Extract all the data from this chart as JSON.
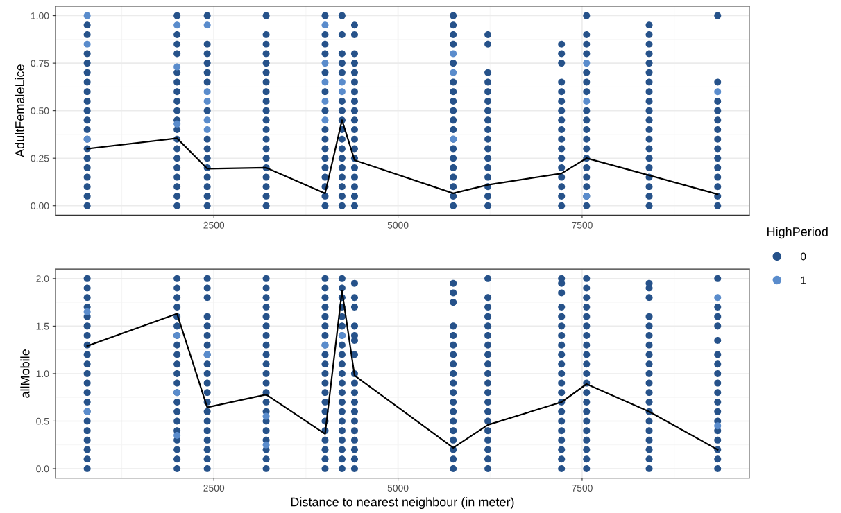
{
  "chart_data": [
    {
      "type": "scatter",
      "ylabel": "AdultFemaleLice",
      "xlim": [
        350,
        9770
      ],
      "xticks": [
        2500,
        5000,
        7500
      ],
      "ylim": [
        -0.05,
        1.05
      ],
      "yticks": [
        {
          "value": 0,
          "label": "0.00"
        },
        {
          "value": 0.25,
          "label": "0.25"
        },
        {
          "value": 0.5,
          "label": "0.50"
        },
        {
          "value": 0.75,
          "label": "0.75"
        },
        {
          "value": 1,
          "label": "1.00"
        }
      ],
      "grid": true,
      "marker": "circle",
      "legend": "right",
      "legend_title": "HighPeriod",
      "series": [
        {
          "name": "0",
          "color": "#26528a",
          "x": [
            780,
            780,
            780,
            780,
            780,
            780,
            780,
            780,
            780,
            780,
            780,
            780,
            780,
            780,
            780,
            780,
            780,
            780,
            780,
            2000,
            2000,
            2000,
            2000,
            2000,
            2000,
            2000,
            2000,
            2000,
            2000,
            2000,
            2000,
            2000,
            2000,
            2000,
            2000,
            2000,
            2000,
            2000,
            2410,
            2410,
            2410,
            2410,
            2410,
            2410,
            2410,
            2410,
            2410,
            2410,
            2410,
            2410,
            2410,
            2410,
            2410,
            3210,
            3210,
            3210,
            3210,
            3210,
            3210,
            3210,
            3210,
            3210,
            3210,
            3210,
            3210,
            3210,
            3210,
            3210,
            3210,
            3210,
            3210,
            3210,
            3210,
            4010,
            4010,
            4010,
            4010,
            4010,
            4010,
            4010,
            4010,
            4010,
            4010,
            4010,
            4010,
            4010,
            4010,
            4010,
            4010,
            4240,
            4240,
            4240,
            4240,
            4240,
            4240,
            4240,
            4240,
            4240,
            4240,
            4240,
            4240,
            4240,
            4240,
            4240,
            4240,
            4240,
            4410,
            4410,
            4410,
            4410,
            4410,
            4410,
            4410,
            4410,
            4410,
            4410,
            4410,
            4410,
            4410,
            4410,
            4410,
            4410,
            4410,
            4410,
            4410,
            5750,
            5750,
            5750,
            5750,
            5750,
            5750,
            5750,
            5750,
            5750,
            5750,
            5750,
            5750,
            5750,
            5750,
            5750,
            5750,
            5750,
            5750,
            5750,
            6220,
            6220,
            6220,
            6220,
            6220,
            6220,
            6220,
            6220,
            6220,
            6220,
            6220,
            6220,
            6220,
            6220,
            6220,
            6220,
            6220,
            7220,
            7220,
            7220,
            7220,
            7220,
            7220,
            7220,
            7220,
            7220,
            7220,
            7220,
            7220,
            7220,
            7220,
            7220,
            7220,
            7220,
            7560,
            7560,
            7560,
            7560,
            7560,
            7560,
            7560,
            7560,
            7560,
            7560,
            7560,
            7560,
            7560,
            7560,
            7560,
            7560,
            7560,
            7560,
            8410,
            8410,
            8410,
            8410,
            8410,
            8410,
            8410,
            8410,
            8410,
            8410,
            8410,
            8410,
            8410,
            8410,
            8410,
            8410,
            8410,
            8410,
            8410,
            8410,
            9340,
            9340,
            9340,
            9340,
            9340,
            9340,
            9340,
            9340,
            9340,
            9340,
            9340,
            9340,
            9340,
            9340
          ],
          "values": [
            0,
            0.05,
            0.1,
            0.15,
            0.2,
            0.25,
            0.3,
            0.35,
            0.4,
            0.45,
            0.5,
            0.55,
            0.6,
            0.65,
            0.7,
            0.75,
            0.8,
            0.9,
            0.95,
            0,
            0.05,
            0.1,
            0.15,
            0.2,
            0.25,
            0.3,
            0.35,
            0.4,
            0.45,
            0.5,
            0.55,
            0.6,
            0.65,
            0.7,
            0.8,
            0.85,
            0.9,
            1,
            0,
            0.05,
            0.1,
            0.15,
            0.2,
            0.25,
            0.3,
            0.35,
            0.5,
            0.65,
            0.7,
            0.75,
            0.8,
            0.85,
            1,
            0,
            0.05,
            0.1,
            0.15,
            0.2,
            0.25,
            0.3,
            0.35,
            0.4,
            0.45,
            0.5,
            0.55,
            0.6,
            0.65,
            0.7,
            0.75,
            0.8,
            0.85,
            0.9,
            1,
            0,
            0.05,
            0.1,
            0.15,
            0.2,
            0.25,
            0.3,
            0.35,
            0.4,
            0.5,
            0.6,
            0.7,
            0.8,
            0.85,
            0.9,
            1,
            0,
            0.05,
            0.1,
            0.15,
            0.2,
            0.25,
            0.3,
            0.35,
            0.4,
            0.45,
            0.5,
            0.55,
            0.7,
            0.75,
            0.8,
            0.9,
            1,
            0,
            0.05,
            0.1,
            0.15,
            0.2,
            0.25,
            0.3,
            0.35,
            0.4,
            0.45,
            0.5,
            0.55,
            0.6,
            0.65,
            0.7,
            0.75,
            0.8,
            0.9,
            0.95,
            0,
            0.05,
            0.1,
            0.15,
            0.2,
            0.25,
            0.3,
            0.35,
            0.4,
            0.45,
            0.5,
            0.55,
            0.6,
            0.65,
            0.75,
            0.85,
            0.9,
            0.95,
            1,
            0,
            0.05,
            0.1,
            0.15,
            0.2,
            0.25,
            0.3,
            0.35,
            0.4,
            0.45,
            0.5,
            0.55,
            0.6,
            0.65,
            0.7,
            0.85,
            0.9,
            0,
            0.05,
            0.1,
            0.15,
            0.2,
            0.25,
            0.3,
            0.35,
            0.4,
            0.45,
            0.5,
            0.55,
            0.6,
            0.65,
            0.75,
            0.8,
            0.85,
            0,
            0.05,
            0.1,
            0.15,
            0.2,
            0.25,
            0.3,
            0.35,
            0.4,
            0.45,
            0.5,
            0.6,
            0.65,
            0.7,
            0.8,
            0.85,
            0.9,
            1,
            0,
            0.05,
            0.1,
            0.15,
            0.2,
            0.25,
            0.3,
            0.35,
            0.4,
            0.45,
            0.5,
            0.55,
            0.6,
            0.65,
            0.7,
            0.75,
            0.8,
            0.85,
            0.9,
            0.95,
            0,
            0.05,
            0.1,
            0.15,
            0.2,
            0.25,
            0.3,
            0.35,
            0.4,
            0.45,
            0.5,
            0.55,
            0.65,
            1
          ]
        },
        {
          "name": "1",
          "color": "#5a8ccc",
          "x": [
            780,
            780,
            780,
            2000,
            2000,
            2000,
            2410,
            2410,
            2410,
            2410,
            2410,
            4010,
            4010,
            4010,
            4010,
            4010,
            4240,
            4240,
            5750,
            5750,
            5750,
            7560,
            7560,
            7560,
            9340
          ],
          "values": [
            1,
            0.85,
            0.35,
            0.95,
            0.73,
            0.43,
            0.95,
            0.6,
            0.55,
            0.45,
            0.4,
            0.95,
            0.75,
            0.65,
            0.55,
            0.45,
            0.65,
            0.6,
            0.8,
            0.7,
            0.35,
            0.75,
            0.55,
            0.05,
            0.6
          ]
        },
        {
          "type": "line",
          "color": "#000000",
          "marker": "none",
          "x": [
            780,
            2000,
            2410,
            3210,
            4010,
            4240,
            4410,
            5750,
            6220,
            7220,
            7560,
            8410,
            9340
          ],
          "values": [
            0.3,
            0.355,
            0.195,
            0.2,
            0.065,
            0.45,
            0.24,
            0.065,
            0.11,
            0.17,
            0.25,
            0.16,
            0.06
          ]
        }
      ]
    },
    {
      "type": "scatter",
      "xlabel": "Distance to nearest neighbour (in meter)",
      "ylabel": "allMobile",
      "xlim": [
        350,
        9770
      ],
      "xticks": [
        2500,
        5000,
        7500
      ],
      "ylim": [
        -0.1,
        2.1
      ],
      "yticks": [
        {
          "value": 0,
          "label": "0.0"
        },
        {
          "value": 0.5,
          "label": "0.5"
        },
        {
          "value": 1,
          "label": "1.0"
        },
        {
          "value": 1.5,
          "label": "1.5"
        },
        {
          "value": 2,
          "label": "2.0"
        }
      ],
      "grid": true,
      "marker": "circle",
      "series": [
        {
          "color": "#26528a",
          "x": [
            780,
            780,
            780,
            780,
            780,
            780,
            780,
            780,
            780,
            780,
            780,
            780,
            780,
            780,
            780,
            780,
            780,
            780,
            780,
            780,
            780,
            2000,
            2000,
            2000,
            2000,
            2000,
            2000,
            2000,
            2000,
            2000,
            2000,
            2000,
            2000,
            2000,
            2000,
            2000,
            2000,
            2000,
            2000,
            2000,
            2000,
            2000,
            2410,
            2410,
            2410,
            2410,
            2410,
            2410,
            2410,
            2410,
            2410,
            2410,
            2410,
            2410,
            2410,
            2410,
            2410,
            2410,
            2410,
            2410,
            2410,
            2410,
            3210,
            3210,
            3210,
            3210,
            3210,
            3210,
            3210,
            3210,
            3210,
            3210,
            3210,
            3210,
            3210,
            3210,
            3210,
            3210,
            3210,
            3210,
            3210,
            3210,
            3210,
            4010,
            4010,
            4010,
            4010,
            4010,
            4010,
            4010,
            4010,
            4010,
            4010,
            4010,
            4010,
            4010,
            4010,
            4010,
            4010,
            4010,
            4010,
            4010,
            4010,
            4010,
            4240,
            4240,
            4240,
            4240,
            4240,
            4240,
            4240,
            4240,
            4240,
            4240,
            4240,
            4240,
            4240,
            4240,
            4240,
            4240,
            4240,
            4240,
            4240,
            4240,
            4240,
            4410,
            4410,
            4410,
            4410,
            4410,
            4410,
            4410,
            4410,
            4410,
            4410,
            4410,
            4410,
            4410,
            4410,
            4410,
            4410,
            4410,
            4410,
            5750,
            5750,
            5750,
            5750,
            5750,
            5750,
            5750,
            5750,
            5750,
            5750,
            5750,
            5750,
            5750,
            5750,
            5750,
            5750,
            5750,
            5750,
            5750,
            6220,
            6220,
            6220,
            6220,
            6220,
            6220,
            6220,
            6220,
            6220,
            6220,
            6220,
            6220,
            6220,
            6220,
            6220,
            6220,
            6220,
            6220,
            6220,
            6220,
            7220,
            7220,
            7220,
            7220,
            7220,
            7220,
            7220,
            7220,
            7220,
            7220,
            7220,
            7220,
            7220,
            7220,
            7220,
            7220,
            7220,
            7220,
            7220,
            7220,
            7220,
            7560,
            7560,
            7560,
            7560,
            7560,
            7560,
            7560,
            7560,
            7560,
            7560,
            7560,
            7560,
            7560,
            7560,
            7560,
            7560,
            7560,
            7560,
            7560,
            7560,
            7560,
            8410,
            8410,
            8410,
            8410,
            8410,
            8410,
            8410,
            8410,
            8410,
            8410,
            8410,
            8410,
            8410,
            8410,
            8410,
            8410,
            8410,
            8410,
            8410,
            8410,
            9340,
            9340,
            9340,
            9340,
            9340,
            9340,
            9340,
            9340,
            9340,
            9340,
            9340,
            9340,
            9340,
            9340,
            9340,
            9340,
            9340,
            9340
          ],
          "values": [
            0,
            0.1,
            0.2,
            0.3,
            0.4,
            0.5,
            0.6,
            0.7,
            0.8,
            0.9,
            1,
            1.1,
            1.2,
            1.3,
            1.4,
            1.5,
            1.6,
            1.7,
            1.8,
            1.9,
            2,
            0,
            0.1,
            0.2,
            0.3,
            0.4,
            0.5,
            0.6,
            0.7,
            0.8,
            0.9,
            1,
            1.1,
            1.2,
            1.3,
            1.4,
            1.5,
            1.6,
            1.7,
            1.8,
            1.9,
            2,
            0,
            0.1,
            0.2,
            0.3,
            0.4,
            0.5,
            0.6,
            0.7,
            0.8,
            0.9,
            1,
            1.1,
            1.2,
            1.3,
            1.4,
            1.5,
            1.6,
            1.8,
            1.9,
            2,
            0,
            0.1,
            0.2,
            0.3,
            0.4,
            0.5,
            0.6,
            0.7,
            0.8,
            0.9,
            1,
            1.1,
            1.2,
            1.3,
            1.4,
            1.5,
            1.6,
            1.7,
            1.8,
            1.9,
            2,
            0,
            0.1,
            0.2,
            0.3,
            0.4,
            0.5,
            0.6,
            0.7,
            0.8,
            0.9,
            1,
            1.1,
            1.2,
            1.3,
            1.4,
            1.5,
            1.6,
            1.7,
            1.8,
            1.9,
            2,
            0,
            0.1,
            0.2,
            0.3,
            0.4,
            0.5,
            0.6,
            0.7,
            0.8,
            0.9,
            1,
            1.1,
            1.2,
            1.3,
            1.4,
            1.5,
            1.6,
            1.7,
            1.8,
            1.9,
            2,
            0,
            0.1,
            0.2,
            0.3,
            0.4,
            0.5,
            0.6,
            0.7,
            0.8,
            0.9,
            1,
            1.2,
            1.35,
            1.4,
            1.5,
            1.7,
            1.8,
            1.95,
            0,
            0.1,
            0.2,
            0.3,
            0.4,
            0.5,
            0.6,
            0.7,
            0.8,
            0.9,
            1,
            1.1,
            1.2,
            1.3,
            1.4,
            1.5,
            1.75,
            1.85,
            1.95,
            0,
            0.1,
            0.2,
            0.3,
            0.4,
            0.5,
            0.6,
            0.7,
            0.8,
            0.9,
            1,
            1.1,
            1.2,
            1.3,
            1.4,
            1.5,
            1.6,
            1.7,
            1.8,
            2,
            0,
            0.1,
            0.2,
            0.3,
            0.4,
            0.5,
            0.6,
            0.7,
            0.8,
            0.9,
            1,
            1.1,
            1.2,
            1.3,
            1.4,
            1.5,
            1.6,
            1.7,
            1.85,
            1.95,
            2,
            0,
            0.1,
            0.2,
            0.3,
            0.4,
            0.5,
            0.6,
            0.7,
            0.8,
            0.9,
            1,
            1.1,
            1.2,
            1.3,
            1.4,
            1.5,
            1.6,
            1.7,
            1.8,
            1.9,
            2,
            0,
            0.1,
            0.2,
            0.3,
            0.4,
            0.5,
            0.6,
            0.7,
            0.8,
            0.9,
            1,
            1.1,
            1.2,
            1.3,
            1.4,
            1.5,
            1.6,
            1.8,
            1.9,
            1.95,
            0,
            0.1,
            0.2,
            0.3,
            0.4,
            0.5,
            0.6,
            0.7,
            0.8,
            0.9,
            1,
            1.1,
            1.2,
            1.35,
            1.5,
            1.6,
            1.7,
            2
          ]
        },
        {
          "color": "#5a8ccc",
          "x": [
            780,
            780,
            2000,
            2000,
            2000,
            2410,
            3210,
            3210,
            4010,
            4240,
            9340,
            9340
          ],
          "values": [
            1.65,
            0.6,
            1.4,
            0.8,
            0.35,
            1.2,
            0.55,
            0.25,
            1.3,
            1.4,
            1.8,
            0.45
          ]
        },
        {
          "type": "line",
          "color": "#000000",
          "marker": "none",
          "x": [
            780,
            2000,
            2410,
            3210,
            4010,
            4240,
            4410,
            5750,
            6220,
            7220,
            7560,
            8410,
            9340
          ],
          "values": [
            1.29,
            1.63,
            0.645,
            0.78,
            0.365,
            1.87,
            0.98,
            0.22,
            0.46,
            0.7,
            0.89,
            0.6,
            0.2
          ]
        }
      ]
    }
  ]
}
